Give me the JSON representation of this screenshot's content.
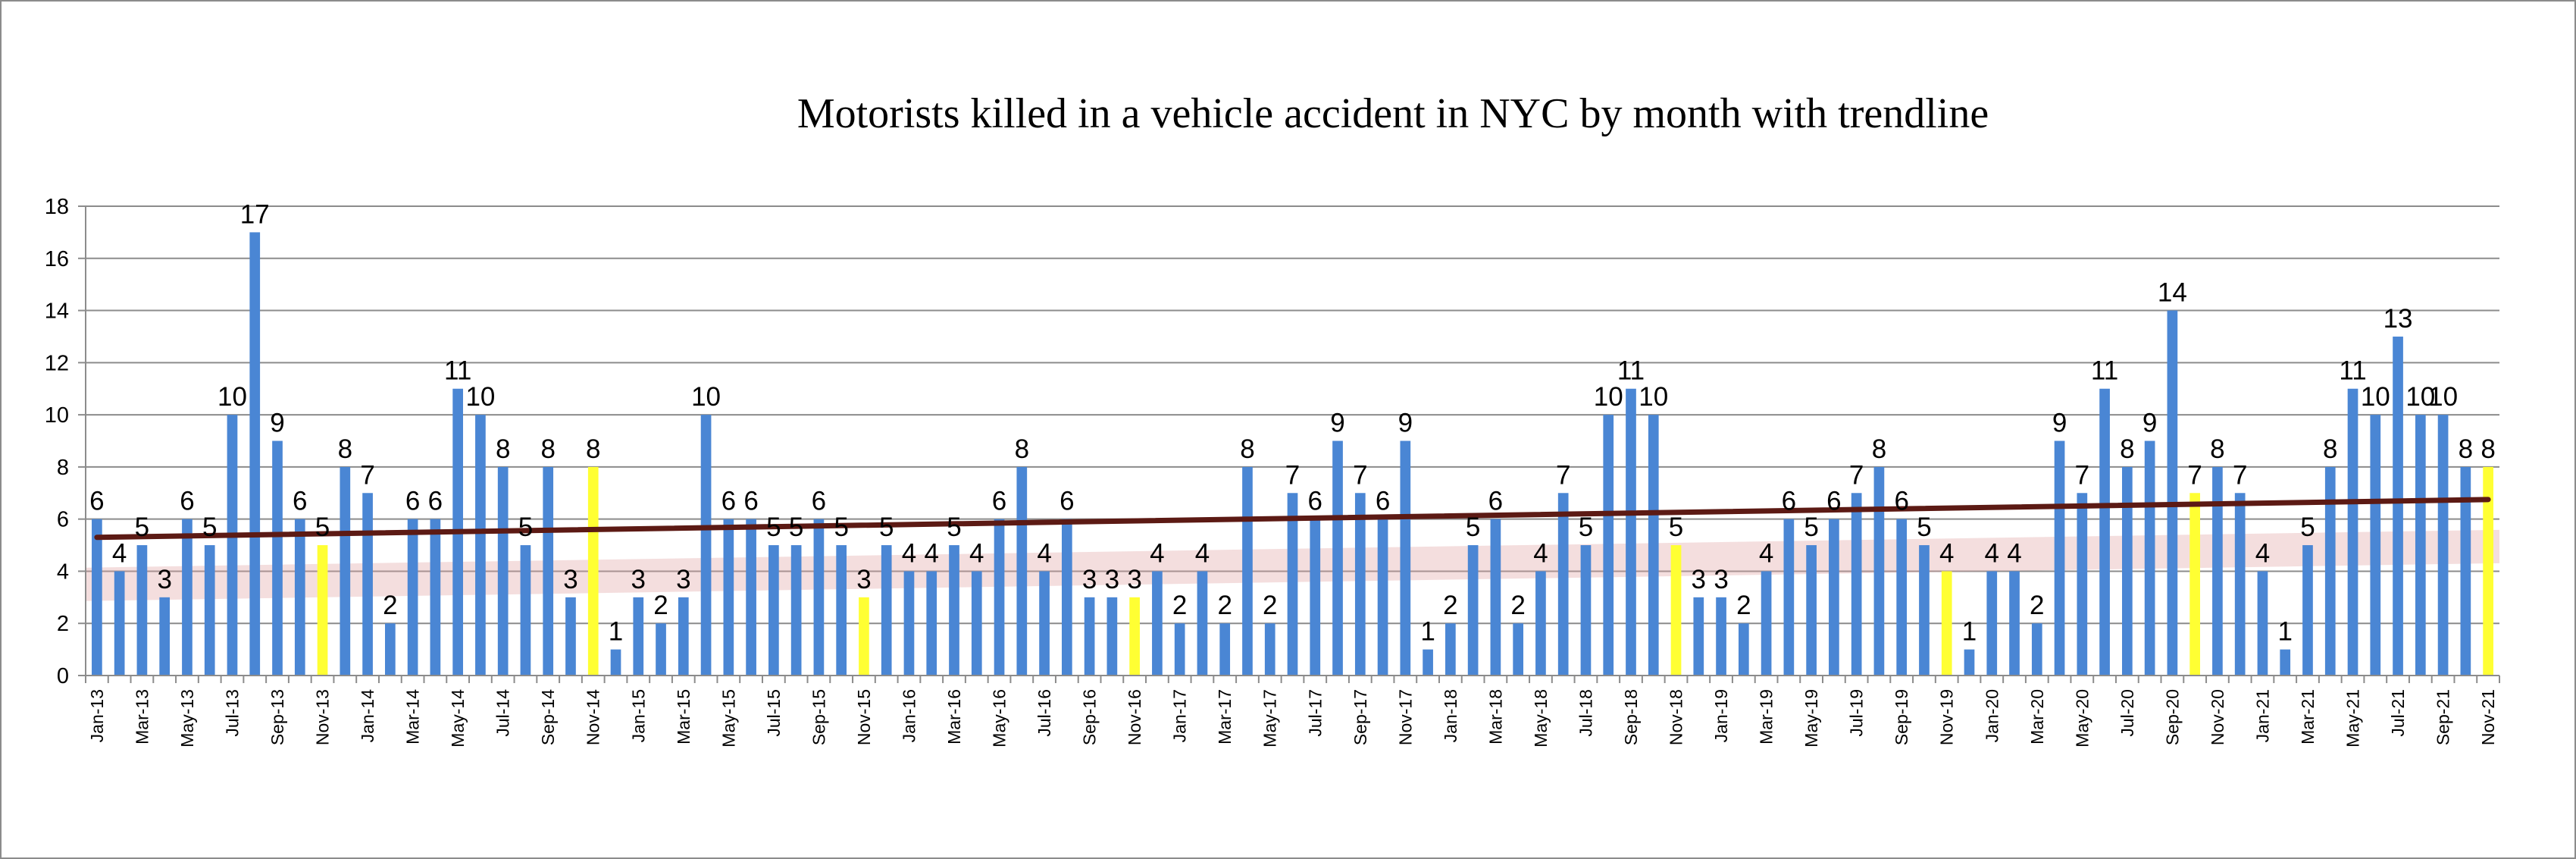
{
  "chart_data": {
    "type": "bar",
    "title": "Motorists killed in a vehicle accident in NYC by month with trendline",
    "xlabel": "",
    "ylabel": "",
    "ylim": [
      0,
      18
    ],
    "yticks": [
      0,
      2,
      4,
      6,
      8,
      10,
      12,
      14,
      16,
      18
    ],
    "grid": true,
    "legend": "none",
    "categories": [
      "Jan-13",
      "Feb-13",
      "Mar-13",
      "Apr-13",
      "May-13",
      "Jun-13",
      "Jul-13",
      "Aug-13",
      "Sep-13",
      "Oct-13",
      "Nov-13",
      "Dec-13",
      "Jan-14",
      "Feb-14",
      "Mar-14",
      "Apr-14",
      "May-14",
      "Jun-14",
      "Jul-14",
      "Aug-14",
      "Sep-14",
      "Oct-14",
      "Nov-14",
      "Dec-14",
      "Jan-15",
      "Feb-15",
      "Mar-15",
      "Apr-15",
      "May-15",
      "Jun-15",
      "Jul-15",
      "Aug-15",
      "Sep-15",
      "Oct-15",
      "Nov-15",
      "Dec-15",
      "Jan-16",
      "Feb-16",
      "Mar-16",
      "Apr-16",
      "May-16",
      "Jun-16",
      "Jul-16",
      "Aug-16",
      "Sep-16",
      "Oct-16",
      "Nov-16",
      "Dec-16",
      "Jan-17",
      "Feb-17",
      "Mar-17",
      "Apr-17",
      "May-17",
      "Jun-17",
      "Jul-17",
      "Aug-17",
      "Sep-17",
      "Oct-17",
      "Nov-17",
      "Dec-17",
      "Jan-18",
      "Feb-18",
      "Mar-18",
      "Apr-18",
      "May-18",
      "Jun-18",
      "Jul-18",
      "Aug-18",
      "Sep-18",
      "Oct-18",
      "Nov-18",
      "Dec-18",
      "Jan-19",
      "Feb-19",
      "Mar-19",
      "Apr-19",
      "May-19",
      "Jun-19",
      "Jul-19",
      "Aug-19",
      "Sep-19",
      "Oct-19",
      "Nov-19",
      "Dec-19",
      "Jan-20",
      "Feb-20",
      "Mar-20",
      "Apr-20",
      "May-20",
      "Jun-20",
      "Jul-20",
      "Aug-20",
      "Sep-20",
      "Oct-20",
      "Nov-20",
      "Dec-20",
      "Jan-21",
      "Feb-21",
      "Mar-21",
      "Apr-21",
      "May-21",
      "Jun-21",
      "Jul-21",
      "Aug-21",
      "Sep-21",
      "Oct-21",
      "Nov-21"
    ],
    "xtick_labels": [
      "Jan-13",
      "Mar-13",
      "May-13",
      "Jul-13",
      "Sep-13",
      "Nov-13",
      "Jan-14",
      "Mar-14",
      "May-14",
      "Jul-14",
      "Sep-14",
      "Nov-14",
      "Jan-15",
      "Mar-15",
      "May-15",
      "Jul-15",
      "Sep-15",
      "Nov-15",
      "Jan-16",
      "Mar-16",
      "May-16",
      "Jul-16",
      "Sep-16",
      "Nov-16",
      "Jan-17",
      "Mar-17",
      "May-17",
      "Jul-17",
      "Sep-17",
      "Nov-17",
      "Jan-18",
      "Mar-18",
      "May-18",
      "Jul-18",
      "Sep-18",
      "Nov-18",
      "Jan-19",
      "Mar-19",
      "May-19",
      "Jul-19",
      "Sep-19",
      "Nov-19",
      "Jan-20",
      "Mar-20",
      "May-20",
      "Jul-20",
      "Sep-20",
      "Nov-20",
      "Jan-21",
      "Mar-21",
      "May-21",
      "Jul-21",
      "Sep-21",
      "Nov-21"
    ],
    "values": [
      6,
      4,
      5,
      3,
      6,
      5,
      10,
      17,
      9,
      6,
      5,
      8,
      7,
      2,
      6,
      6,
      11,
      10,
      8,
      5,
      8,
      3,
      8,
      1,
      3,
      2,
      3,
      10,
      6,
      6,
      5,
      5,
      6,
      5,
      3,
      5,
      4,
      4,
      5,
      4,
      6,
      8,
      4,
      6,
      3,
      3,
      3,
      4,
      2,
      4,
      2,
      8,
      2,
      7,
      6,
      9,
      7,
      6,
      9,
      1,
      2,
      5,
      6,
      2,
      4,
      7,
      5,
      10,
      11,
      10,
      5,
      3,
      3,
      2,
      4,
      6,
      5,
      6,
      7,
      8,
      6,
      5,
      4,
      1,
      4,
      4,
      2,
      9,
      7,
      11,
      8,
      9,
      14,
      7,
      8,
      7,
      4,
      1,
      5,
      8,
      11,
      10,
      13,
      10,
      10,
      8,
      8
    ],
    "highlighted_categories": [
      "Nov-13",
      "Nov-14",
      "Nov-15",
      "Nov-16",
      "Nov-18",
      "Nov-19",
      "Oct-20",
      "Nov-21"
    ],
    "trendline": {
      "type": "linear",
      "start_value": 5.3,
      "end_value": 6.75
    },
    "colors": {
      "bar": "#4a86d4",
      "highlight_bar": "#ffff33",
      "trendline": "#5c1a14",
      "trendline_glow": "#e0a0a0",
      "grid": "#8c8c8c",
      "axis": "#8c8c8c"
    }
  }
}
